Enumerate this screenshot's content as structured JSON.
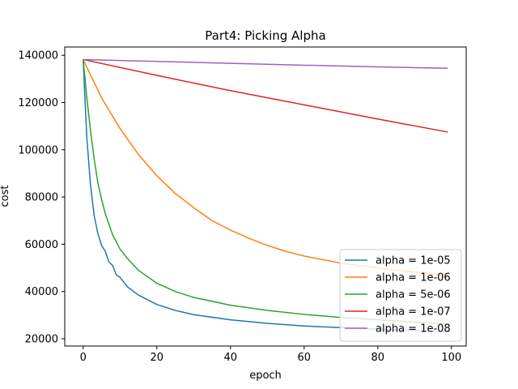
{
  "chart_data": {
    "type": "line",
    "title": "Part4: Picking Alpha",
    "xlabel": "epoch",
    "ylabel": "cost",
    "xlim": [
      -5,
      104
    ],
    "ylim": [
      16900,
      143500
    ],
    "xticks": [
      0,
      20,
      40,
      60,
      80,
      100
    ],
    "yticks": [
      20000,
      40000,
      60000,
      80000,
      100000,
      120000,
      140000
    ],
    "xtick_labels": [
      "0",
      "20",
      "40",
      "60",
      "80",
      "100"
    ],
    "ytick_labels": [
      "20000",
      "40000",
      "60000",
      "80000",
      "100000",
      "120000",
      "140000"
    ],
    "grid": false,
    "legend_position": "lower-right",
    "series": [
      {
        "name": "alpha = 1e-05",
        "color": "#1f77b4",
        "x": [
          0,
          1,
          2,
          3,
          4,
          5,
          6,
          7,
          8,
          9,
          10,
          12,
          15,
          20,
          25,
          30,
          40,
          50,
          60,
          70,
          80,
          90,
          99
        ],
        "y": [
          138200,
          105000,
          85000,
          72000,
          64500,
          59500,
          57000,
          52500,
          51000,
          47000,
          46000,
          42000,
          38500,
          34500,
          32000,
          30200,
          28000,
          26500,
          25400,
          24700,
          24000,
          23500,
          23000
        ]
      },
      {
        "name": "alpha = 1e-06",
        "color": "#ff7f0e",
        "x": [
          0,
          5,
          10,
          15,
          20,
          25,
          30,
          35,
          40,
          45,
          50,
          55,
          60,
          65,
          70,
          75,
          80,
          85,
          90,
          95,
          99
        ],
        "y": [
          138200,
          122000,
          109000,
          98000,
          89000,
          81500,
          75500,
          70000,
          66000,
          62500,
          59500,
          57000,
          55000,
          53500,
          52000,
          51000,
          50000,
          49000,
          48200,
          47500,
          47000
        ]
      },
      {
        "name": "alpha = 5e-06",
        "color": "#2ca02c",
        "x": [
          0,
          1,
          2,
          3,
          4,
          5,
          6,
          8,
          10,
          12,
          15,
          20,
          25,
          30,
          40,
          50,
          60,
          70,
          80,
          90,
          99
        ],
        "y": [
          138200,
          122000,
          108000,
          96000,
          86000,
          79000,
          73000,
          64000,
          58000,
          54000,
          49000,
          43500,
          40000,
          37500,
          34200,
          32000,
          30300,
          29000,
          28000,
          27000,
          26200
        ]
      },
      {
        "name": "alpha = 1e-07",
        "color": "#d62728",
        "x": [
          0,
          20,
          40,
          60,
          80,
          99
        ],
        "y": [
          138200,
          131500,
          125000,
          119000,
          113000,
          107500
        ]
      },
      {
        "name": "alpha = 1e-08",
        "color": "#9467bd",
        "x": [
          0,
          20,
          40,
          60,
          80,
          99
        ],
        "y": [
          138200,
          137400,
          136600,
          135800,
          135100,
          134500
        ]
      }
    ]
  }
}
